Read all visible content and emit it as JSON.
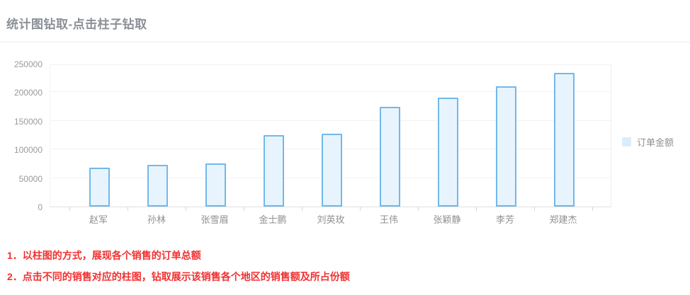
{
  "page": {
    "title": "统计图钻取-点击柱子钻取"
  },
  "legend": {
    "label": "订单金额",
    "swatch_color": "#d9edfb"
  },
  "notes": [
    "1．以柱图的方式，展现各个销售的订单总额",
    "2．点击不同的销售对应的柱图，钻取展示该销售各个地区的销售额及所占份额"
  ],
  "colors": {
    "bar_fill": "#e8f4fd",
    "bar_border": "#72b8e9",
    "note_red": "#f23030",
    "axis_text": "#9a9a9a",
    "title_gray": "#8b9096"
  },
  "chart_data": {
    "type": "bar",
    "title": "",
    "xlabel": "",
    "ylabel": "",
    "categories": [
      "赵军",
      "孙林",
      "张雪眉",
      "金士鹏",
      "刘英玫",
      "王伟",
      "张颖静",
      "李芳",
      "郑建杰"
    ],
    "values": [
      68000,
      73500,
      75500,
      124500,
      127500,
      174000,
      191000,
      210500,
      234000
    ],
    "series": [
      {
        "name": "订单金额",
        "values": [
          68000,
          73500,
          75500,
          124500,
          127500,
          174000,
          191000,
          210500,
          234000
        ]
      }
    ],
    "legend": [
      "订单金额"
    ],
    "legend_position": "right",
    "ylim": [
      0,
      250000
    ],
    "y_ticks": [
      0,
      50000,
      100000,
      150000,
      200000,
      250000
    ],
    "grid": true
  }
}
